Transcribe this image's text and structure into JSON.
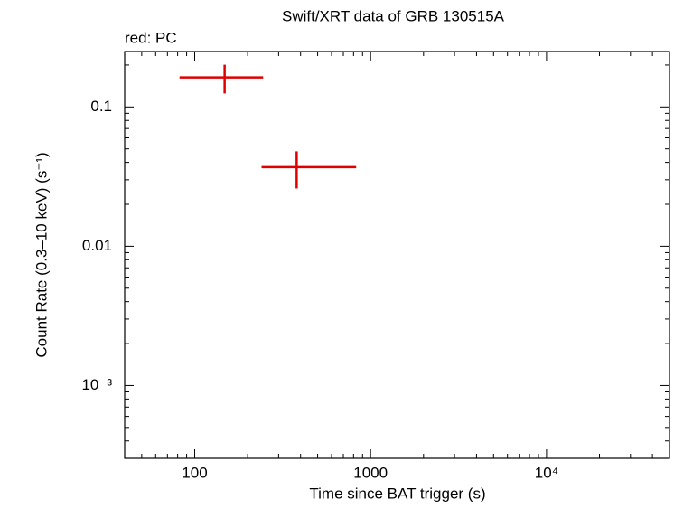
{
  "chart_data": {
    "type": "errorbar",
    "title": "Swift/XRT data of GRB 130515A",
    "subtitle": "red: PC",
    "x_label": "Time since BAT trigger (s)",
    "y_label": "Count Rate (0.3–10 keV) (s⁻¹)",
    "log_x": true,
    "log_y": true,
    "xlim": [
      40,
      50000
    ],
    "ylim": [
      0.0003,
      0.25
    ],
    "xticks": [
      100,
      1000,
      {
        "value": 10000,
        "label": "10⁴"
      }
    ],
    "yticks": [
      0.1,
      0.01,
      {
        "value": 0.001,
        "label": "10⁻³"
      }
    ],
    "xminorticks": [
      50,
      60,
      70,
      80,
      90,
      200,
      300,
      400,
      500,
      600,
      700,
      800,
      900,
      2000,
      3000,
      4000,
      5000,
      6000,
      7000,
      8000,
      9000,
      20000,
      30000,
      40000
    ],
    "yminorticks": [
      0.0004,
      0.0005,
      0.0006,
      0.0007,
      0.0008,
      0.0009,
      0.002,
      0.003,
      0.004,
      0.005,
      0.006,
      0.007,
      0.008,
      0.009,
      0.02,
      0.03,
      0.04,
      0.05,
      0.06,
      0.07,
      0.08,
      0.09,
      0.2
    ],
    "series": [
      {
        "name": "PC",
        "color": "#e00000",
        "x": [
          148,
          380
        ],
        "x_low": [
          82,
          240
        ],
        "x_high": [
          245,
          828
        ],
        "values": [
          0.163,
          0.037
        ],
        "yerr": [
          0.038,
          0.011
        ]
      }
    ]
  }
}
